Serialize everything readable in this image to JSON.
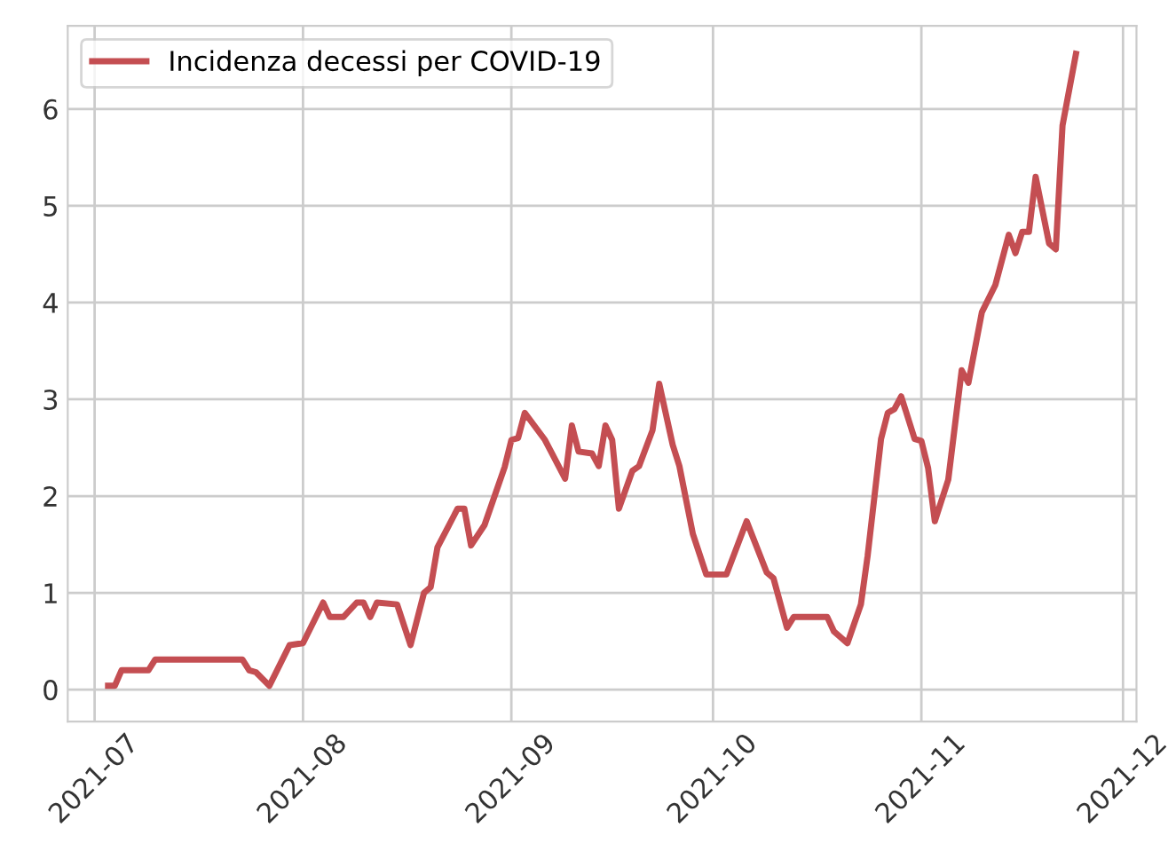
{
  "chart_data": {
    "type": "line",
    "series": [
      {
        "name": "Incidenza decessi per COVID-19",
        "color": "#c44e52",
        "x": [
          "2021-07-03",
          "2021-07-04",
          "2021-07-05",
          "2021-07-09",
          "2021-07-10",
          "2021-07-23",
          "2021-07-24",
          "2021-07-25",
          "2021-07-27",
          "2021-07-30",
          "2021-08-01",
          "2021-08-04",
          "2021-08-05",
          "2021-08-07",
          "2021-08-09",
          "2021-08-10",
          "2021-08-11",
          "2021-08-12",
          "2021-08-15",
          "2021-08-17",
          "2021-08-19",
          "2021-08-20",
          "2021-08-21",
          "2021-08-24",
          "2021-08-25",
          "2021-08-26",
          "2021-08-28",
          "2021-08-31",
          "2021-09-01",
          "2021-09-02",
          "2021-09-03",
          "2021-09-06",
          "2021-09-09",
          "2021-09-10",
          "2021-09-11",
          "2021-09-13",
          "2021-09-14",
          "2021-09-15",
          "2021-09-16",
          "2021-09-17",
          "2021-09-19",
          "2021-09-20",
          "2021-09-22",
          "2021-09-23",
          "2021-09-25",
          "2021-09-26",
          "2021-09-28",
          "2021-09-30",
          "2021-10-03",
          "2021-10-06",
          "2021-10-09",
          "2021-10-10",
          "2021-10-12",
          "2021-10-13",
          "2021-10-18",
          "2021-10-19",
          "2021-10-21",
          "2021-10-23",
          "2021-10-24",
          "2021-10-26",
          "2021-10-27",
          "2021-10-28",
          "2021-10-29",
          "2021-10-31",
          "2021-11-01",
          "2021-11-02",
          "2021-11-03",
          "2021-11-05",
          "2021-11-07",
          "2021-11-08",
          "2021-11-10",
          "2021-11-12",
          "2021-11-14",
          "2021-11-15",
          "2021-11-16",
          "2021-11-17",
          "2021-11-18",
          "2021-11-20",
          "2021-11-21",
          "2021-11-22",
          "2021-11-24"
        ],
        "values": [
          0.04,
          0.04,
          0.2,
          0.2,
          0.31,
          0.31,
          0.2,
          0.18,
          0.04,
          0.46,
          0.48,
          0.9,
          0.75,
          0.75,
          0.9,
          0.9,
          0.75,
          0.9,
          0.88,
          0.46,
          1.0,
          1.06,
          1.47,
          1.87,
          1.87,
          1.49,
          1.7,
          2.3,
          2.58,
          2.6,
          2.86,
          2.58,
          2.18,
          2.73,
          2.46,
          2.44,
          2.31,
          2.73,
          2.58,
          1.87,
          2.26,
          2.31,
          2.68,
          3.16,
          2.53,
          2.31,
          1.61,
          1.19,
          1.19,
          1.74,
          1.21,
          1.15,
          0.64,
          0.75,
          0.75,
          0.6,
          0.48,
          0.88,
          1.38,
          2.59,
          2.86,
          2.9,
          3.03,
          2.59,
          2.57,
          2.29,
          1.74,
          2.17,
          3.3,
          3.17,
          3.9,
          4.18,
          4.7,
          4.51,
          4.73,
          4.73,
          5.3,
          4.61,
          4.55,
          5.83,
          6.57
        ]
      }
    ],
    "xlim": [
      "2021-06-27",
      "2021-12-03"
    ],
    "xticks": [
      "2021-07",
      "2021-08",
      "2021-09",
      "2021-10",
      "2021-11",
      "2021-12"
    ],
    "ylim": [
      -0.33,
      6.86
    ],
    "yticks": [
      0,
      1,
      2,
      3,
      4,
      5,
      6
    ],
    "grid": true,
    "legend": "top left",
    "line_style": "solid"
  }
}
